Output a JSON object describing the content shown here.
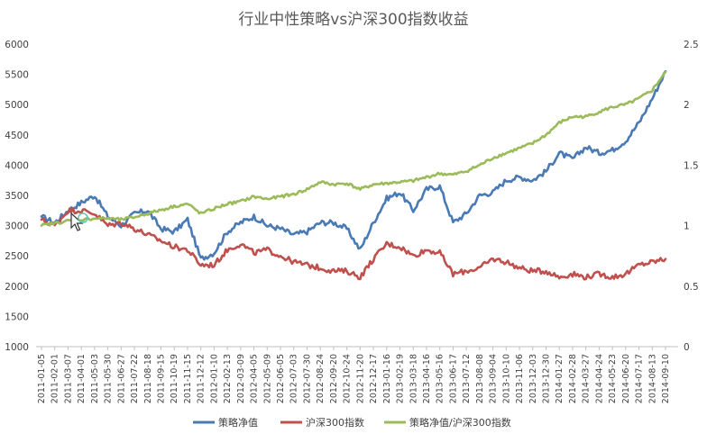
{
  "chart_data": {
    "type": "line",
    "title": "行业中性策略vs沪深300指数收益",
    "left_axis": {
      "min": 1000,
      "max": 6000,
      "step": 500,
      "ticks": [
        "1000",
        "1500",
        "2000",
        "2500",
        "3000",
        "3500",
        "4000",
        "4500",
        "5000",
        "5500",
        "6000"
      ]
    },
    "right_axis": {
      "min": 0,
      "max": 2.5,
      "step": 0.5,
      "ticks": [
        "0",
        "0.5",
        "1",
        "1.5",
        "2",
        "2.5"
      ]
    },
    "x_ticks": [
      "2011-01-05",
      "2011-02-01",
      "2011-03-07",
      "2011-04-01",
      "2011-05-03",
      "2011-05-30",
      "2011-06-27",
      "2011-07-22",
      "2011-08-18",
      "2011-09-15",
      "2011-10-19",
      "2011-11-15",
      "2011-12-12",
      "2012-01-10",
      "2012-02-13",
      "2012-03-09",
      "2012-04-05",
      "2012-05-09",
      "2012-06-05",
      "2012-07-03",
      "2012-07-30",
      "2012-08-24",
      "2012-09-20",
      "2012-10-24",
      "2012-11-20",
      "2012-12-17",
      "2013-01-16",
      "2013-02-19",
      "2013-03-18",
      "2013-04-16",
      "2013-05-16",
      "2013-06-17",
      "2013-07-12",
      "2013-08-08",
      "2013-09-04",
      "2013-10-10",
      "2013-11-06",
      "2013-12-03",
      "2013-12-30",
      "2014-01-27",
      "2014-02-28",
      "2014-03-27",
      "2014-04-24",
      "2014-05-23",
      "2014-06-20",
      "2014-07-17",
      "2014-08-13",
      "2014-09-10"
    ],
    "grid": false,
    "legend_position": "bottom",
    "series": [
      {
        "name": "策略净值",
        "axis": "left",
        "color": "#4a7ab5",
        "values": [
          3150,
          3050,
          3250,
          3380,
          3500,
          3150,
          3000,
          3200,
          3250,
          2950,
          2900,
          3100,
          2450,
          2550,
          2900,
          3050,
          3150,
          3000,
          2950,
          2850,
          2900,
          3050,
          3050,
          2950,
          2600,
          3050,
          3450,
          3550,
          3250,
          3600,
          3650,
          3050,
          3200,
          3500,
          3550,
          3750,
          3800,
          3750,
          3900,
          4200,
          4100,
          4300,
          4200,
          4250,
          4400,
          4700,
          5100,
          5550
        ]
      },
      {
        "name": "沪深300指数",
        "axis": "left",
        "color": "#c0504d",
        "values": [
          3100,
          3000,
          3250,
          3250,
          3200,
          3000,
          3050,
          2950,
          2850,
          2750,
          2650,
          2600,
          2350,
          2350,
          2600,
          2700,
          2550,
          2600,
          2500,
          2400,
          2350,
          2300,
          2250,
          2250,
          2150,
          2450,
          2700,
          2650,
          2500,
          2600,
          2550,
          2200,
          2250,
          2300,
          2450,
          2400,
          2300,
          2250,
          2250,
          2150,
          2200,
          2150,
          2200,
          2150,
          2200,
          2350,
          2400,
          2450
        ]
      },
      {
        "name": "策略净值/沪深300指数",
        "axis": "right",
        "color": "#9bbb59",
        "values": [
          1.0,
          1.02,
          1.04,
          1.05,
          1.06,
          1.06,
          1.05,
          1.07,
          1.1,
          1.13,
          1.16,
          1.18,
          1.1,
          1.14,
          1.18,
          1.2,
          1.24,
          1.22,
          1.24,
          1.26,
          1.3,
          1.36,
          1.34,
          1.35,
          1.3,
          1.34,
          1.35,
          1.36,
          1.37,
          1.4,
          1.43,
          1.42,
          1.45,
          1.5,
          1.56,
          1.6,
          1.64,
          1.68,
          1.75,
          1.85,
          1.9,
          1.9,
          1.94,
          1.98,
          2.0,
          2.05,
          2.12,
          2.27
        ]
      }
    ]
  }
}
